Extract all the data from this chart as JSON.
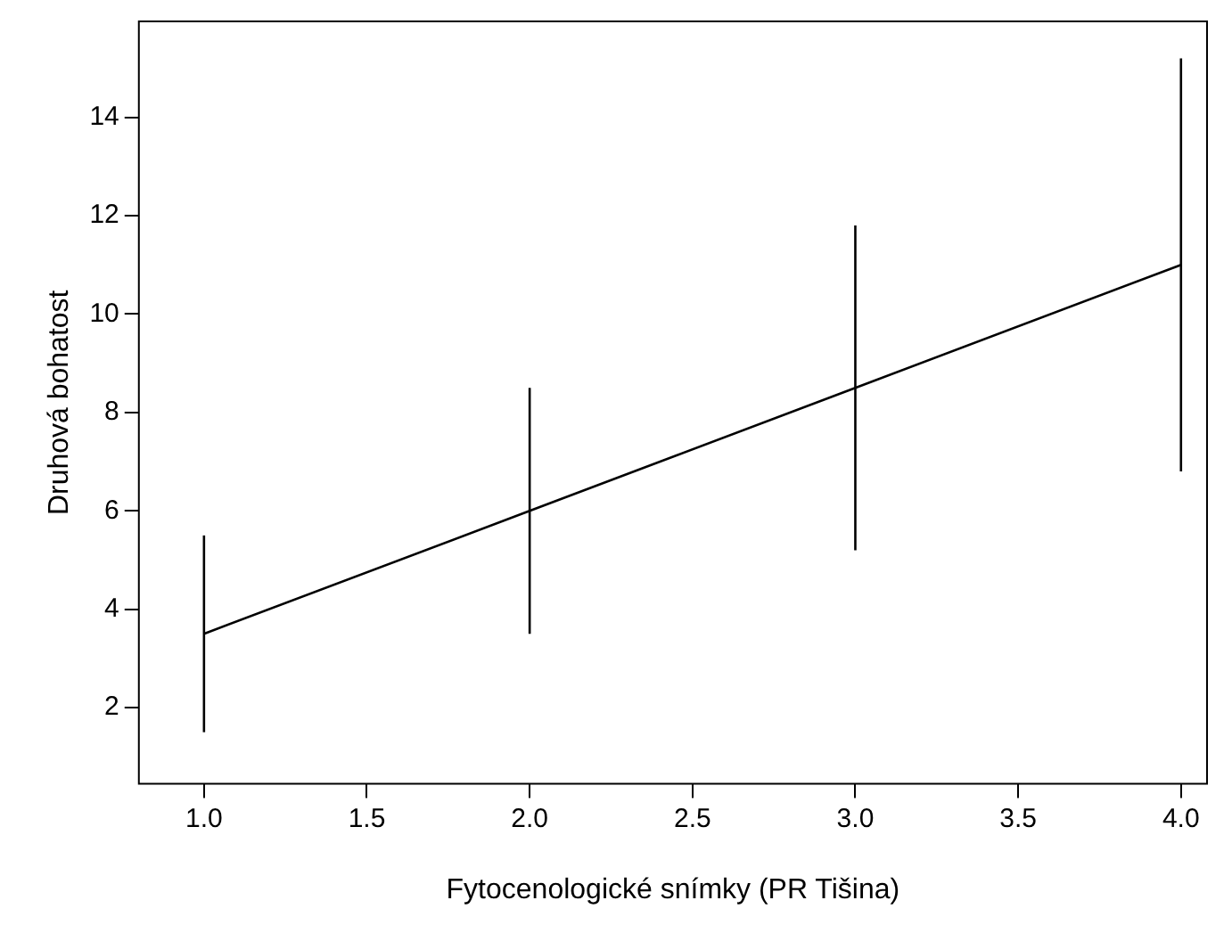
{
  "chart_data": {
    "type": "line",
    "xlabel": "Fytocenologické snímky (PR Tišina)",
    "ylabel": "Druhová bohatost",
    "x": [
      1,
      2,
      3,
      4
    ],
    "series": [
      {
        "color": "#000000",
        "values": [
          3.5,
          6,
          8.5,
          11
        ],
        "errors": [
          2,
          2.5,
          3.3,
          4.2
        ]
      }
    ],
    "xlim": [
      0.8,
      4.08
    ],
    "xticks": [
      {
        "value": 1,
        "label": "1.0"
      },
      {
        "value": 1.5,
        "label": "1.5"
      },
      {
        "value": 2,
        "label": "2.0"
      },
      {
        "value": 2.5,
        "label": "2.5"
      },
      {
        "value": 3,
        "label": "3.0"
      },
      {
        "value": 3.5,
        "label": "3.5"
      },
      {
        "value": 4,
        "label": "4.0"
      }
    ],
    "ylim": [
      0.45,
      15.95
    ],
    "yticks": [
      2,
      4,
      6,
      8,
      10,
      12,
      14
    ],
    "grid": false,
    "legend": false,
    "marker": "none",
    "line_style": "solid"
  }
}
